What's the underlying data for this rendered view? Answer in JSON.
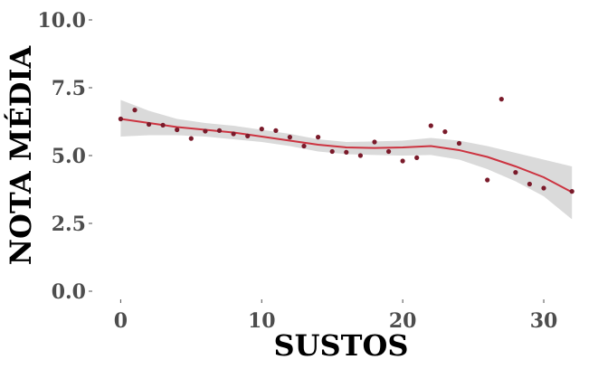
{
  "chart_data": {
    "type": "scatter",
    "xlabel": "SUSTOS",
    "ylabel": "NOTA MÉDIA",
    "xlim": [
      -1.5,
      32.5
    ],
    "ylim": [
      0,
      10
    ],
    "x_ticks": [
      0,
      10,
      20,
      30
    ],
    "x_tick_labels": [
      "0",
      "10",
      "20",
      "30"
    ],
    "y_ticks": [
      0,
      2.5,
      5,
      7.5,
      10
    ],
    "y_tick_labels": [
      "0.0",
      "2.5",
      "5.0",
      "7.5",
      "10.0"
    ],
    "grid": false,
    "points": [
      {
        "x": 0,
        "y": 6.35
      },
      {
        "x": 1,
        "y": 6.68
      },
      {
        "x": 2,
        "y": 6.15
      },
      {
        "x": 3,
        "y": 6.12
      },
      {
        "x": 4,
        "y": 5.95
      },
      {
        "x": 5,
        "y": 5.63
      },
      {
        "x": 6,
        "y": 5.9
      },
      {
        "x": 7,
        "y": 5.92
      },
      {
        "x": 8,
        "y": 5.8
      },
      {
        "x": 9,
        "y": 5.72
      },
      {
        "x": 10,
        "y": 5.98
      },
      {
        "x": 11,
        "y": 5.92
      },
      {
        "x": 12,
        "y": 5.68
      },
      {
        "x": 13,
        "y": 5.35
      },
      {
        "x": 14,
        "y": 5.68
      },
      {
        "x": 15,
        "y": 5.15
      },
      {
        "x": 16,
        "y": 5.12
      },
      {
        "x": 17,
        "y": 5.0
      },
      {
        "x": 18,
        "y": 5.5
      },
      {
        "x": 19,
        "y": 5.15
      },
      {
        "x": 20,
        "y": 4.8
      },
      {
        "x": 21,
        "y": 4.92
      },
      {
        "x": 22,
        "y": 6.1
      },
      {
        "x": 23,
        "y": 5.88
      },
      {
        "x": 24,
        "y": 5.45
      },
      {
        "x": 26,
        "y": 4.1
      },
      {
        "x": 27,
        "y": 7.08
      },
      {
        "x": 28,
        "y": 4.38
      },
      {
        "x": 29,
        "y": 3.95
      },
      {
        "x": 30,
        "y": 3.8
      },
      {
        "x": 32,
        "y": 3.68
      }
    ],
    "trend": {
      "x": [
        0,
        2,
        4,
        6,
        8,
        10,
        12,
        14,
        16,
        18,
        20,
        22,
        24,
        26,
        28,
        30,
        32
      ],
      "y": [
        6.35,
        6.2,
        6.05,
        5.95,
        5.85,
        5.7,
        5.55,
        5.4,
        5.3,
        5.28,
        5.3,
        5.35,
        5.2,
        4.95,
        4.6,
        4.2,
        3.65
      ],
      "lower": [
        5.7,
        5.75,
        5.75,
        5.7,
        5.6,
        5.5,
        5.35,
        5.15,
        5.05,
        5.02,
        5.0,
        5.02,
        4.85,
        4.5,
        4.05,
        3.5,
        2.65
      ],
      "upper": [
        7.05,
        6.65,
        6.35,
        6.2,
        6.1,
        5.95,
        5.8,
        5.6,
        5.5,
        5.52,
        5.55,
        5.65,
        5.55,
        5.35,
        5.1,
        4.85,
        4.6
      ]
    },
    "colors": {
      "points": "#7a1a2a",
      "trend_line": "#cc3340",
      "band": "#d6d6d6",
      "tick_text": "#4d4d4d",
      "title_text": "#000000"
    }
  }
}
